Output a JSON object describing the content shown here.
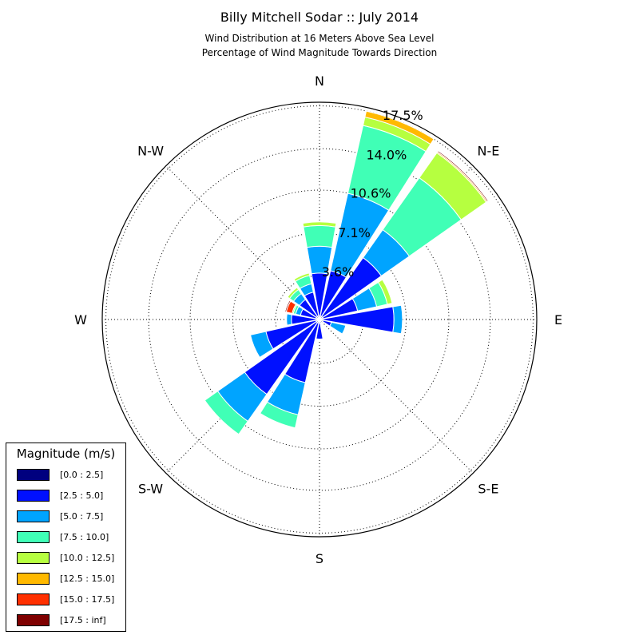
{
  "chart_data": {
    "type": "windrose",
    "title": "Billy Mitchell Sodar :: July 2014",
    "subtitle_lines": [
      "Wind Distribution at 16 Meters Above Sea Level",
      "Percentage of Wind Magnitude Towards Direction"
    ],
    "direction_labels": [
      "N",
      "N-E",
      "E",
      "S-E",
      "S",
      "S-W",
      "W",
      "N-W"
    ],
    "radial_ticks": [
      3.6,
      7.1,
      10.6,
      14.0,
      17.5
    ],
    "radial_tick_labels": [
      "3.6%",
      "7.1%",
      "10.6%",
      "14.0%",
      "17.5%"
    ],
    "r_max": 17.8,
    "legend_title": "Magnitude (m/s)",
    "bins": [
      {
        "label": "[0.0 : 2.5]",
        "color": "#00007f"
      },
      {
        "label": "[2.5 : 5.0]",
        "color": "#0010ff"
      },
      {
        "label": "[5.0 : 7.5]",
        "color": "#00a4ff"
      },
      {
        "label": "[7.5 : 10.0]",
        "color": "#40ffb6"
      },
      {
        "label": "[10.0 : 12.5]",
        "color": "#b6ff40"
      },
      {
        "label": "[12.5 : 15.0]",
        "color": "#ffb900"
      },
      {
        "label": "[15.0 : 17.5]",
        "color": "#ff3000"
      },
      {
        "label": "[17.5 : inf]",
        "color": "#7f0000"
      }
    ],
    "sectors": [
      {
        "direction_deg": 0,
        "cumulative": [
          0.3,
          3.8,
          6.0,
          7.7,
          8.0
        ]
      },
      {
        "direction_deg": 22.5,
        "cumulative": [
          0.3,
          4.1,
          10.6,
          16.3,
          17.0,
          17.5
        ]
      },
      {
        "direction_deg": 45,
        "cumulative": [
          0.3,
          6.2,
          9.0,
          14.2,
          16.7,
          16.8,
          16.8,
          16.9
        ]
      },
      {
        "direction_deg": 67.5,
        "cumulative": [
          0.3,
          3.2,
          4.8,
          5.7,
          6.1
        ]
      },
      {
        "direction_deg": 90,
        "cumulative": [
          0.3,
          6.1,
          6.8
        ]
      },
      {
        "direction_deg": 112.5,
        "cumulative": [
          0.3,
          1.0,
          2.2
        ]
      },
      {
        "direction_deg": 135,
        "cumulative": [
          0.3
        ]
      },
      {
        "direction_deg": 157.5,
        "cumulative": [
          0.3
        ]
      },
      {
        "direction_deg": 180,
        "cumulative": [
          0.3,
          1.6
        ]
      },
      {
        "direction_deg": 202.5,
        "cumulative": [
          0.3,
          5.3,
          8.0,
          9.1
        ]
      },
      {
        "direction_deg": 225,
        "cumulative": [
          0.3,
          7.5,
          10.2,
          11.5
        ]
      },
      {
        "direction_deg": 247.5,
        "cumulative": [
          0.3,
          4.5,
          5.8
        ]
      },
      {
        "direction_deg": 270,
        "cumulative": [
          0.3,
          2.3,
          2.7
        ]
      },
      {
        "direction_deg": 292.5,
        "cumulative": [
          0.3,
          1.6,
          2.0,
          2.2,
          2.3,
          2.3,
          2.8,
          2.9
        ]
      },
      {
        "direction_deg": 315,
        "cumulative": [
          0.3,
          2.0,
          2.6,
          3.0,
          3.2
        ]
      },
      {
        "direction_deg": 337.5,
        "cumulative": [
          0.3,
          2.3,
          3.0,
          3.7,
          3.9
        ]
      }
    ]
  }
}
